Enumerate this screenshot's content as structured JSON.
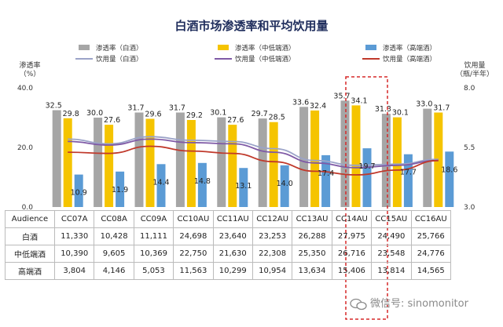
{
  "chart_data": {
    "type": "bar",
    "title": "白酒市场渗透率和平均饮用量",
    "categories": [
      "CC07A",
      "CC08A",
      "CC09A",
      "CC10AU",
      "CC11AU",
      "CC12AU",
      "CC13AU",
      "CC14AU",
      "CC15AU",
      "CC16AU"
    ],
    "y_left_label": "渗透率（%）",
    "y_right_label": "饮用量（瓶/半年）",
    "ylim_left": [
      0,
      40
    ],
    "ylim_right": [
      3,
      8
    ],
    "left_ticks": [
      "40.0",
      "20.0",
      "0.0"
    ],
    "right_ticks": [
      "8.0",
      "5.5",
      "3.0"
    ],
    "series": [
      {
        "name": "渗透率（白酒）",
        "type": "bar",
        "color": "#a6a6a6",
        "values": [
          32.5,
          30.0,
          31.7,
          31.7,
          30.1,
          29.7,
          33.6,
          35.7,
          31.3,
          33.0
        ],
        "labels": [
          "32.5",
          "30.0",
          "31.7",
          "31.7",
          "30.1",
          "29.7",
          "33.6",
          "35.7",
          "31.3",
          "33.0"
        ]
      },
      {
        "name": "渗透率（中低端酒）",
        "type": "bar",
        "color": "#f5c400",
        "values": [
          29.8,
          27.6,
          29.6,
          29.2,
          27.6,
          28.5,
          32.4,
          34.1,
          30.1,
          31.7
        ],
        "labels": [
          "29.8",
          "27.6",
          "29.6",
          "29.2",
          "27.6",
          "28.5",
          "32.4",
          "34.1",
          "30.1",
          "31.7"
        ]
      },
      {
        "name": "渗透率（高端酒）",
        "type": "bar",
        "color": "#5b9bd5",
        "values": [
          10.9,
          11.9,
          14.4,
          14.8,
          13.1,
          14.0,
          17.4,
          19.7,
          17.7,
          18.6
        ],
        "labels": [
          "10.9",
          "11.9",
          "14.4",
          "14.8",
          "13.1",
          "14.0",
          "17.4",
          "19.7",
          "17.7",
          "18.6"
        ]
      },
      {
        "name": "饮用量（白酒）",
        "type": "line",
        "color": "#9ba3c8",
        "values": [
          5.85,
          5.65,
          5.95,
          5.8,
          5.75,
          5.45,
          4.95,
          4.75,
          4.8,
          5.0
        ]
      },
      {
        "name": "饮用量（中低端酒）",
        "type": "line",
        "color": "#7f5aa6",
        "values": [
          5.75,
          5.6,
          5.85,
          5.7,
          5.65,
          5.3,
          4.85,
          4.65,
          4.75,
          4.95
        ]
      },
      {
        "name": "饮用量（高端酒）",
        "type": "line",
        "color": "#c0392b",
        "values": [
          5.3,
          5.25,
          5.55,
          5.35,
          5.25,
          4.9,
          4.5,
          4.35,
          4.55,
          4.95
        ]
      }
    ],
    "highlight_category": "CC14AU",
    "table": {
      "header_label": "Audience",
      "rows": [
        {
          "label": "白酒",
          "values": [
            "11,330",
            "10,428",
            "11,111",
            "24,698",
            "23,640",
            "23,253",
            "26,288",
            "27,975",
            "24,490",
            "25,766"
          ]
        },
        {
          "label": "中低端酒",
          "values": [
            "10,390",
            "9,605",
            "10,369",
            "22,750",
            "21,630",
            "22,308",
            "25,350",
            "26,716",
            "23,548",
            "24,776"
          ]
        },
        {
          "label": "高端酒",
          "values": [
            "3,804",
            "4,146",
            "5,053",
            "11,563",
            "10,299",
            "10,954",
            "13,634",
            "15,406",
            "13,814",
            "14,565"
          ]
        }
      ]
    }
  },
  "watermark": {
    "text": "微信号: sinomonitor"
  }
}
